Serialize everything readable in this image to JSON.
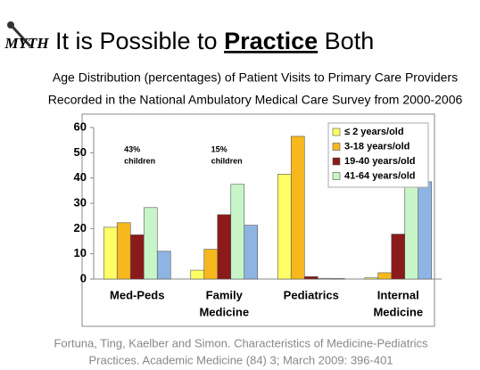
{
  "logo": "MYTH",
  "title": {
    "before": "It is Possible to ",
    "emphasis": "Practice",
    "after": " Both"
  },
  "chart_data": {
    "type": "bar",
    "title": [
      "Age Distribution (percentages) of Patient Visits to Primary Care Providers",
      "Recorded in the National Ambulatory Medical Care Survey from 2000-2006"
    ],
    "categories": [
      [
        "Med-Peds"
      ],
      [
        "Family",
        "Medicine"
      ],
      [
        "Pediatrics"
      ],
      [
        "Internal",
        "Medicine"
      ]
    ],
    "series": [
      {
        "name": "≤ 2 years/old",
        "color": "#ffff66",
        "values": [
          20.5,
          3.5,
          41.5,
          0.5
        ]
      },
      {
        "name": "3-18 years/old",
        "color": "#f7b81e",
        "values": [
          22.3,
          11.8,
          56.5,
          2.5
        ]
      },
      {
        "name": "19-40 years/old",
        "color": "#8b1a1a",
        "values": [
          17.5,
          25.5,
          1,
          17.8
        ]
      },
      {
        "name": "41-64 years/old",
        "color": "#c8f5c8",
        "values": [
          28.3,
          37.5,
          0.3,
          40.2
        ]
      },
      {
        "color": "#8db4e2",
        "values": [
          11,
          21.3,
          0.2,
          38.5
        ]
      }
    ],
    "annotations": [
      [
        "43%",
        "children"
      ],
      [
        "15%",
        "children"
      ]
    ],
    "ylim": [
      0,
      60
    ],
    "yticks": [
      0,
      10,
      20,
      30,
      40,
      50,
      60
    ],
    "legend": "top-right"
  },
  "citation": [
    "Fortuna, Ting, Kaelber and Simon.  Characteristics of Medicine-Pediatrics",
    "Practices.  Academic Medicine (84) 3; March 2009: 396-401"
  ]
}
